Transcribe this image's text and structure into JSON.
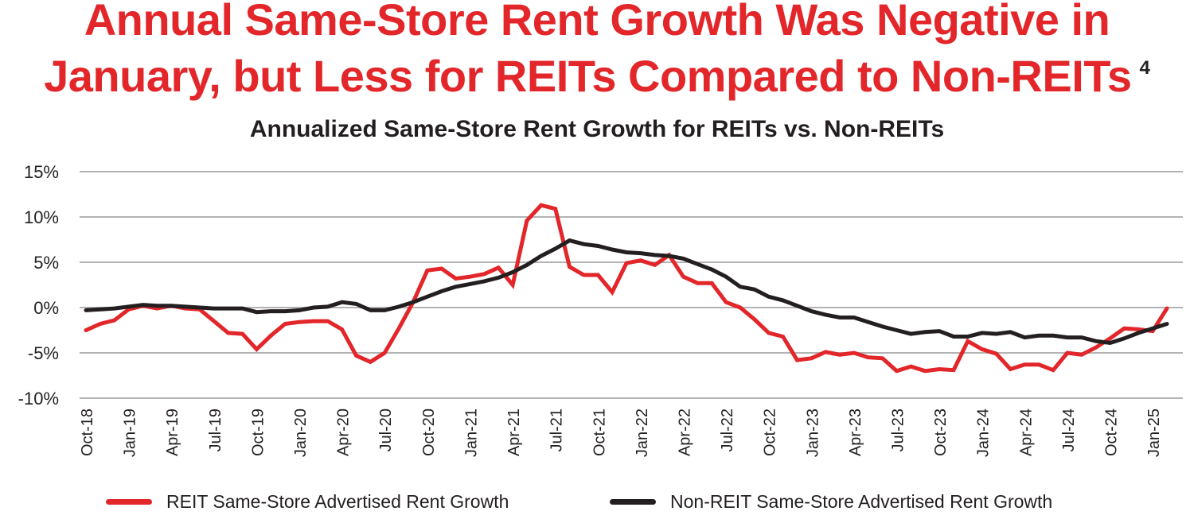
{
  "header": {
    "title_line1": "Annual Same-Store Rent Growth Was Negative in",
    "title_line2": "January, but Less for REITs Compared to Non-REITs",
    "footnote_marker": "4",
    "subtitle": "Annualized Same-Store Rent Growth for REITs vs. Non-REITs"
  },
  "colors": {
    "title": "#e2262a",
    "reit": "#e2262a",
    "non_reit": "#231f20",
    "grid": "#b3b3b3",
    "text": "#231f20"
  },
  "legend": [
    {
      "label": "REIT Same-Store Advertised Rent Growth",
      "color": "#e2262a"
    },
    {
      "label": "Non-REIT Same-Store Advertised Rent Growth",
      "color": "#231f20"
    }
  ],
  "chart_data": {
    "type": "line",
    "title": "Annualized Same-Store Rent Growth for REITs vs. Non-REITs",
    "xlabel": "",
    "ylabel": "",
    "ylim": [
      -10,
      15
    ],
    "yticks": [
      15,
      10,
      5,
      0,
      -5,
      -10
    ],
    "ytick_labels": [
      "15%",
      "10%",
      "5%",
      "0%",
      "-5%",
      "-10%"
    ],
    "grid": true,
    "legend_position": "bottom",
    "xtick_labels": [
      "Oct-18",
      "Jan-19",
      "Apr-19",
      "Jul-19",
      "Oct-19",
      "Jan-20",
      "Apr-20",
      "Jul-20",
      "Oct-20",
      "Jan-21",
      "Apr-21",
      "Jul-21",
      "Oct-21",
      "Jan-22",
      "Apr-22",
      "Jul-22",
      "Oct-22",
      "Jan-23",
      "Apr-23",
      "Jul-23",
      "Oct-23",
      "Jan-24",
      "Apr-24",
      "Jul-24",
      "Oct-24",
      "Jan-25"
    ],
    "x_start": "Oct-18",
    "x_end": "Jan-25",
    "frequency": "monthly",
    "series": [
      {
        "name": "REIT Same-Store Advertised Rent Growth",
        "color": "#e2262a",
        "values": [
          -2.5,
          -1.8,
          -1.4,
          -0.2,
          0.2,
          -0.1,
          0.2,
          -0.1,
          -0.2,
          -1.5,
          -2.8,
          -2.9,
          -4.6,
          -3.1,
          -1.8,
          -1.6,
          -1.5,
          -1.5,
          -2.4,
          -5.3,
          -6.0,
          -5.0,
          -2.3,
          0.6,
          4.1,
          4.3,
          3.2,
          3.4,
          3.7,
          4.4,
          2.5,
          9.6,
          11.3,
          10.9,
          4.5,
          3.6,
          3.6,
          1.7,
          4.9,
          5.2,
          4.7,
          5.8,
          3.4,
          2.7,
          2.7,
          0.6,
          0.0,
          -1.3,
          -2.8,
          -3.2,
          -5.8,
          -5.6,
          -4.9,
          -5.2,
          -5.0,
          -5.5,
          -5.6,
          -7.0,
          -6.5,
          -7.0,
          -6.8,
          -6.9,
          -3.7,
          -4.6,
          -5.1,
          -6.8,
          -6.3,
          -6.3,
          -6.9,
          -5.0,
          -5.2,
          -4.4,
          -3.4,
          -2.3,
          -2.4,
          -2.6,
          -0.1
        ]
      },
      {
        "name": "Non-REIT Same-Store Advertised Rent Growth",
        "color": "#231f20",
        "values": [
          -0.3,
          -0.2,
          -0.1,
          0.1,
          0.3,
          0.2,
          0.2,
          0.1,
          0.0,
          -0.1,
          -0.1,
          -0.1,
          -0.5,
          -0.4,
          -0.4,
          -0.3,
          0.0,
          0.1,
          0.6,
          0.4,
          -0.3,
          -0.3,
          0.1,
          0.6,
          1.2,
          1.8,
          2.3,
          2.6,
          2.9,
          3.3,
          3.9,
          4.7,
          5.7,
          6.5,
          7.4,
          7.0,
          6.8,
          6.4,
          6.1,
          6.0,
          5.8,
          5.7,
          5.4,
          4.8,
          4.2,
          3.4,
          2.3,
          2.0,
          1.2,
          0.8,
          0.2,
          -0.4,
          -0.8,
          -1.1,
          -1.1,
          -1.6,
          -2.1,
          -2.5,
          -2.9,
          -2.7,
          -2.6,
          -3.2,
          -3.2,
          -2.8,
          -2.9,
          -2.7,
          -3.3,
          -3.1,
          -3.1,
          -3.3,
          -3.3,
          -3.7,
          -3.9,
          -3.4,
          -2.8,
          -2.3,
          -1.8
        ]
      }
    ]
  }
}
